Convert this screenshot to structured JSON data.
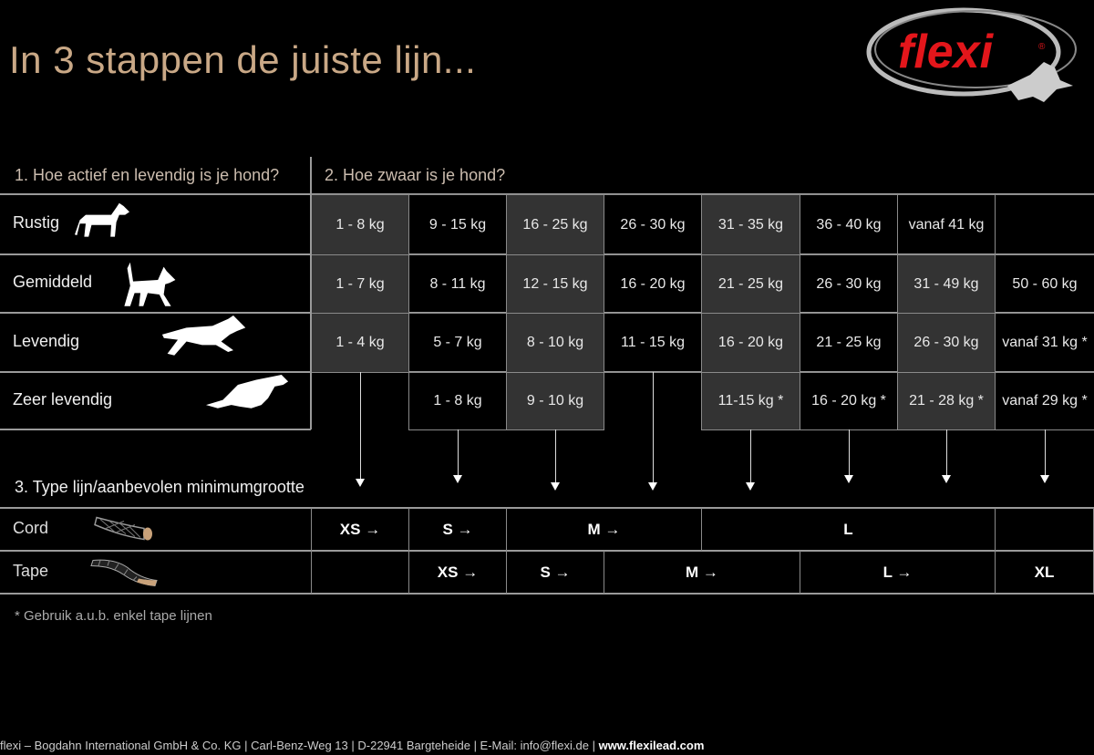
{
  "title": "In 3 stappen de juiste lijn...",
  "logo": {
    "text": "flexi",
    "color": "#e3161b"
  },
  "step1_header": "1. Hoe actief en levendig is je hond?",
  "step2_header": "2. Hoe zwaar is je hond?",
  "step3_header": "3. Type lijn/aanbevolen minimumgrootte",
  "activity_rows": [
    {
      "label": "Rustig",
      "icon": "standing-dog-icon",
      "cells": [
        {
          "v": "1 - 8 kg",
          "gray": true
        },
        {
          "v": "9 - 15 kg"
        },
        {
          "v": "16 - 25 kg",
          "gray": true
        },
        {
          "v": "26 - 30 kg"
        },
        {
          "v": "31 - 35 kg",
          "gray": true
        },
        {
          "v": "36 - 40 kg"
        },
        {
          "v": "vanaf 41 kg"
        },
        {
          "v": ""
        }
      ]
    },
    {
      "label": "Gemiddeld",
      "icon": "walking-dog-icon",
      "cells": [
        {
          "v": "1 - 7 kg",
          "gray": true
        },
        {
          "v": "8 - 11 kg"
        },
        {
          "v": "12 - 15 kg",
          "gray": true
        },
        {
          "v": "16 - 20 kg"
        },
        {
          "v": "21 - 25 kg",
          "gray": true
        },
        {
          "v": "26 - 30 kg"
        },
        {
          "v": "31 - 49 kg",
          "gray": true
        },
        {
          "v": "50 - 60 kg"
        }
      ]
    },
    {
      "label": "Levendig",
      "icon": "running-dog-icon",
      "cells": [
        {
          "v": "1 - 4 kg",
          "gray": true
        },
        {
          "v": "5 - 7 kg"
        },
        {
          "v": "8 - 10 kg",
          "gray": true
        },
        {
          "v": "11 - 15 kg"
        },
        {
          "v": "16 - 20 kg",
          "gray": true
        },
        {
          "v": "21 - 25 kg"
        },
        {
          "v": "26 - 30 kg",
          "gray": true
        },
        {
          "v": "vanaf 31 kg *"
        }
      ]
    },
    {
      "label": "Zeer levendig",
      "icon": "sprinting-dog-icon",
      "cells": [
        null,
        {
          "v": "1 - 8 kg"
        },
        {
          "v": "9 - 10 kg",
          "gray": true
        },
        null,
        {
          "v": "11-15 kg *",
          "gray": true
        },
        {
          "v": "16 - 20 kg *"
        },
        {
          "v": "21 - 28 kg *",
          "gray": true
        },
        {
          "v": "vanaf 29 kg *"
        }
      ]
    }
  ],
  "lead_rows": [
    {
      "label": "Cord",
      "icon": "cord-icon",
      "spans": [
        {
          "v": "XS →",
          "from": 0,
          "n": 1
        },
        {
          "v": "S →",
          "from": 1,
          "n": 1
        },
        {
          "v": "M →",
          "from": 2,
          "n": 2
        },
        {
          "v": "L",
          "from": 4,
          "n": 3
        },
        {
          "v": "",
          "from": 7,
          "n": 1
        }
      ]
    },
    {
      "label": "Tape",
      "icon": "tape-icon",
      "spans": [
        {
          "v": "",
          "from": 0,
          "n": 1
        },
        {
          "v": "XS →",
          "from": 1,
          "n": 1
        },
        {
          "v": "S →",
          "from": 2,
          "n": 1
        },
        {
          "v": "M →",
          "from": 3,
          "n": 2
        },
        {
          "v": "L →",
          "from": 5,
          "n": 2
        },
        {
          "v": "XL",
          "from": 7,
          "n": 1
        }
      ]
    }
  ],
  "note": "* Gebruik a.u.b. enkel tape lijnen",
  "footer": {
    "text": "flexi – Bogdahn International GmbH & Co. KG | Carl-Benz-Weg 13 | D-22941 Bargteheide | E-Mail: info@flexi.de | ",
    "website": "www.flexilead.com"
  }
}
